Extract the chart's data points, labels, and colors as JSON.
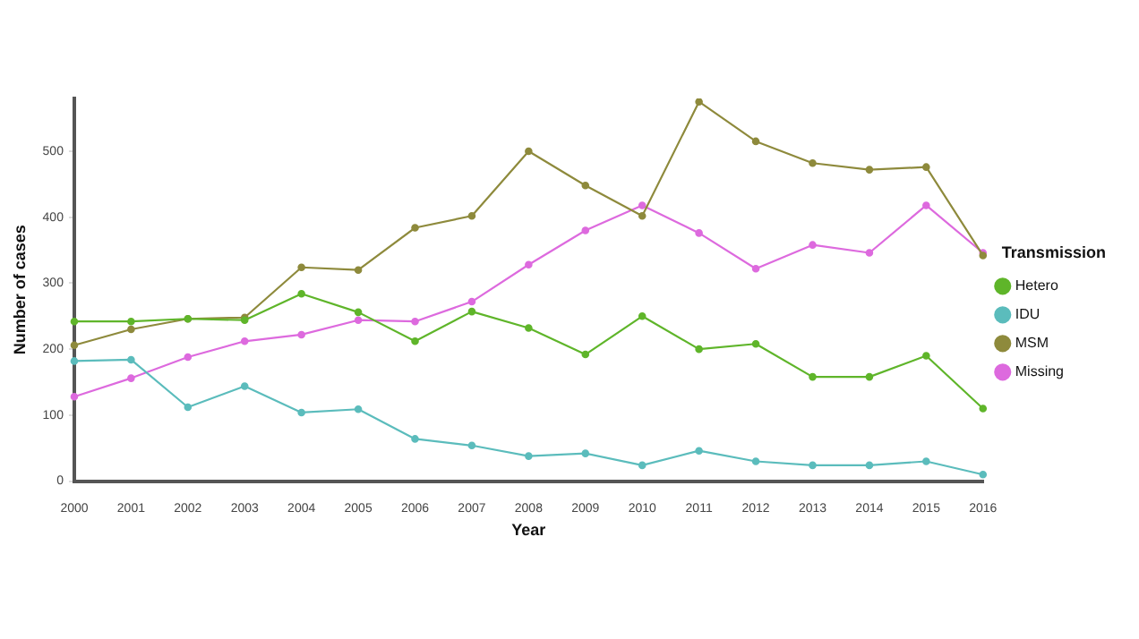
{
  "chart_data": {
    "type": "line",
    "xlabel": "Year",
    "ylabel": "Number of cases",
    "legend_title": "Transmission",
    "legend": "right",
    "grid": false,
    "marker": "circle",
    "line_style": "solid",
    "categories": [
      "2000",
      "2001",
      "2002",
      "2003",
      "2004",
      "2005",
      "2006",
      "2007",
      "2008",
      "2009",
      "2010",
      "2011",
      "2012",
      "2013",
      "2014",
      "2015",
      "2016"
    ],
    "ylim": [
      0,
      580
    ],
    "yticks": [
      0,
      100,
      200,
      300,
      400,
      500
    ],
    "series": [
      {
        "name": "Hetero",
        "color": "#5fb52a",
        "values": [
          242,
          242,
          246,
          244,
          284,
          256,
          212,
          257,
          232,
          192,
          250,
          200,
          208,
          158,
          158,
          190,
          110
        ]
      },
      {
        "name": "IDU",
        "color": "#5bbcbc",
        "values": [
          182,
          184,
          112,
          144,
          104,
          109,
          64,
          54,
          38,
          42,
          24,
          46,
          30,
          24,
          24,
          30,
          10
        ]
      },
      {
        "name": "MSM",
        "color": "#8e8a3c",
        "values": [
          206,
          230,
          246,
          248,
          324,
          320,
          384,
          402,
          500,
          448,
          402,
          575,
          515,
          482,
          472,
          476,
          342
        ]
      },
      {
        "name": "Missing",
        "color": "#dd6ade",
        "values": [
          128,
          156,
          188,
          212,
          222,
          244,
          242,
          272,
          328,
          380,
          418,
          376,
          322,
          358,
          346,
          418,
          346
        ]
      }
    ]
  }
}
